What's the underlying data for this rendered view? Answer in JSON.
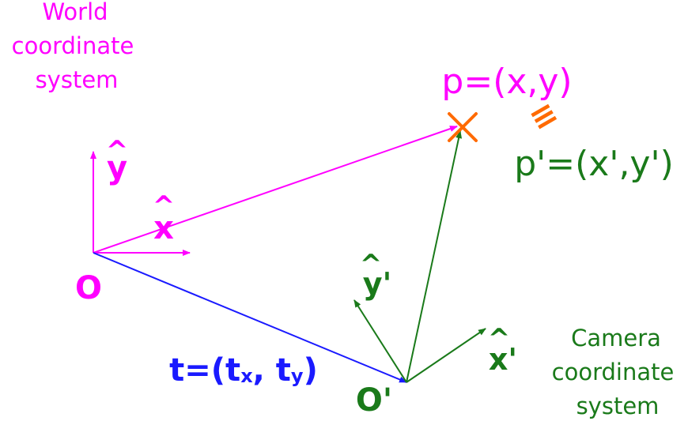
{
  "colors": {
    "world": "#ff00ff",
    "camera": "#1a7a1a",
    "translation": "#1a1aff",
    "point_marker": "#ff6a00"
  },
  "world": {
    "caption_line1": "World",
    "caption_line2": "coordinate",
    "caption_line3": "system",
    "origin_label": "O",
    "x_axis_label": "x",
    "y_axis_label": "y",
    "hat": "^"
  },
  "camera": {
    "caption_line1": "Camera",
    "caption_line2": "coordinate",
    "caption_line3": "system",
    "origin_label": "O'",
    "x_axis_label": "x'",
    "y_axis_label": "y'",
    "hat": "^"
  },
  "point": {
    "world_label": "p=(x,y)",
    "camera_label": "p'=(x',y')",
    "equivalence_symbol": "≡"
  },
  "translation": {
    "prefix": "t=(t",
    "sub_x": "x",
    "middle": ", t",
    "sub_y": "y",
    "suffix": ")"
  }
}
